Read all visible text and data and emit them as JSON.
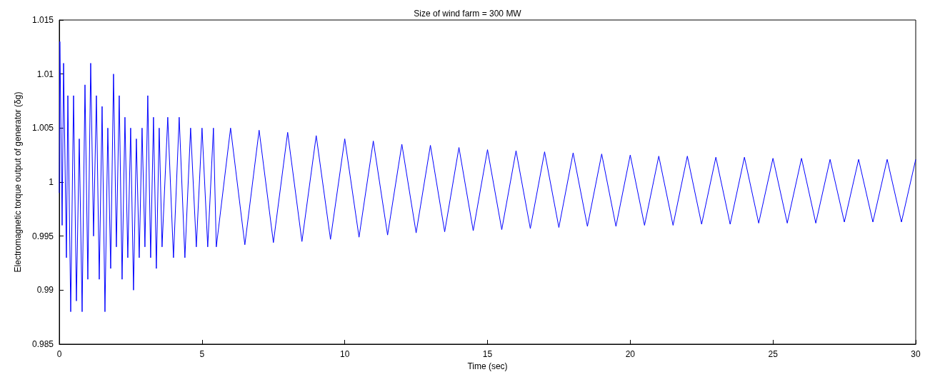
{
  "chart_data": {
    "type": "line",
    "title": "Size of wind farm = 300 MW",
    "xlabel": "Time (sec)",
    "ylabel": "Electromagnetic torque output of generator (δg)",
    "x": [
      0,
      0.02,
      0.1,
      0.15,
      0.25,
      0.3,
      0.4,
      0.5,
      0.6,
      0.7,
      0.8,
      0.9,
      1.0,
      1.1,
      1.2,
      1.3,
      1.4,
      1.5,
      1.6,
      1.7,
      1.8,
      1.9,
      2.0,
      2.1,
      2.2,
      2.3,
      2.4,
      2.5,
      2.6,
      2.7,
      2.8,
      2.9,
      3.0,
      3.1,
      3.2,
      3.3,
      3.4,
      3.5,
      3.6,
      3.8,
      4.0,
      4.2,
      4.4,
      4.6,
      4.8,
      5.0,
      5.2,
      5.4,
      5.5,
      6.0,
      6.5,
      7.0,
      7.5,
      8.0,
      8.5,
      9.0,
      9.5,
      10.0,
      10.5,
      11.0,
      11.5,
      12.0,
      12.5,
      13.0,
      13.5,
      14.0,
      14.5,
      15.0,
      15.5,
      16.0,
      16.5,
      17.0,
      17.5,
      18.0,
      18.5,
      19.0,
      19.5,
      20.0,
      20.5,
      21.0,
      21.5,
      22.0,
      22.5,
      23.0,
      23.5,
      24.0,
      24.5,
      25.0,
      25.5,
      26.0,
      26.5,
      27.0,
      27.5,
      28.0,
      28.5,
      29.0,
      29.5,
      30.0
    ],
    "values": [
      0.999,
      1.013,
      0.996,
      1.011,
      0.993,
      1.008,
      0.988,
      1.008,
      0.989,
      1.004,
      0.988,
      1.009,
      0.991,
      1.011,
      0.995,
      1.008,
      0.991,
      1.007,
      0.988,
      1.005,
      0.992,
      1.01,
      0.994,
      1.008,
      0.991,
      1.006,
      0.993,
      1.005,
      0.99,
      1.004,
      0.993,
      1.005,
      0.994,
      1.008,
      0.993,
      1.006,
      0.992,
      1.005,
      0.994,
      1.006,
      0.993,
      1.006,
      0.993,
      1.005,
      0.994,
      1.005,
      0.994,
      1.005,
      0.994,
      1.005,
      0.9942,
      1.0048,
      0.9944,
      1.0046,
      0.9945,
      1.0043,
      0.9947,
      1.004,
      0.9949,
      1.0038,
      0.9951,
      1.0035,
      0.9953,
      1.0034,
      0.9954,
      1.0032,
      0.9955,
      1.003,
      0.9956,
      1.0029,
      0.9957,
      1.0028,
      0.9958,
      1.0027,
      0.9959,
      1.0026,
      0.9959,
      1.0025,
      0.996,
      1.0024,
      0.996,
      1.0024,
      0.9961,
      1.0023,
      0.9961,
      1.0023,
      0.9962,
      1.0022,
      0.9962,
      1.0022,
      0.9962,
      1.0021,
      0.9963,
      1.0021,
      0.9963,
      1.0021,
      0.9963,
      1.0021
    ],
    "color": "#0000ff",
    "xlim": [
      0,
      30
    ],
    "xticks": [
      0,
      5,
      10,
      15,
      20,
      25,
      30
    ],
    "ylim": [
      0.985,
      1.015
    ],
    "yticks": [
      0.985,
      0.99,
      0.995,
      1,
      1.005,
      1.01,
      1.015
    ],
    "grid": false,
    "marker": "none",
    "line_style": "solid"
  }
}
